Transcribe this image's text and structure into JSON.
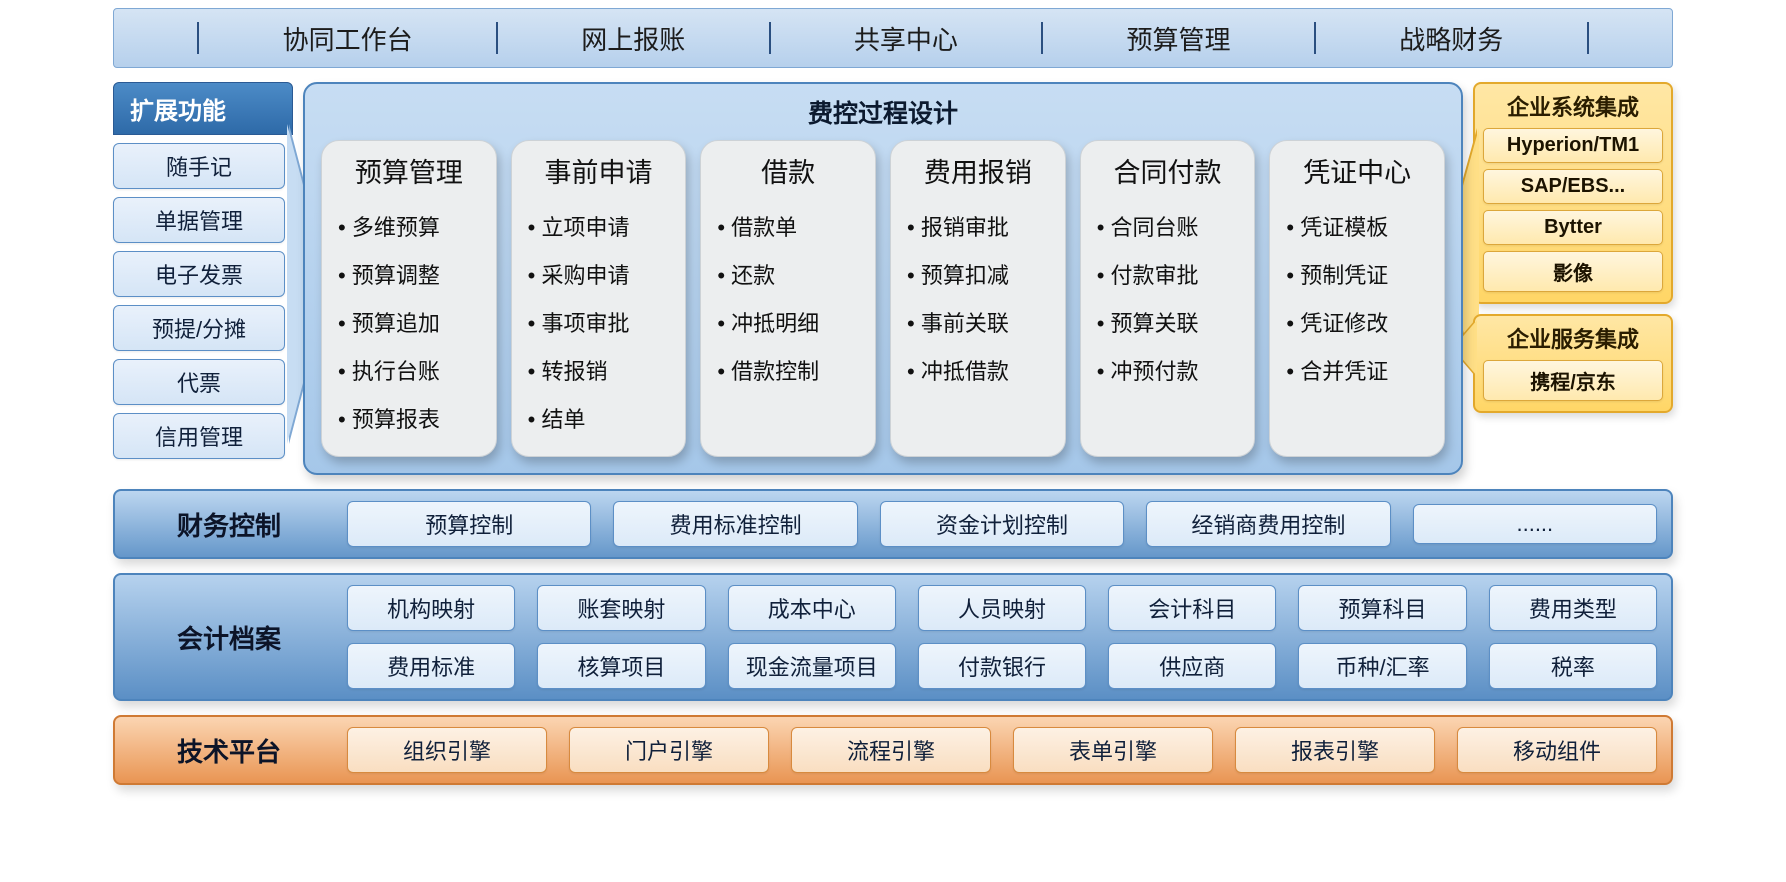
{
  "colors": {
    "top_nav_bg_from": "#d5e4f4",
    "top_nav_bg_to": "#b6d0ec",
    "top_nav_border": "#7fa8d4",
    "top_nav_sep": "#2a4f80",
    "blue_band_from": "#bcd6f0",
    "blue_band_to": "#6597ca",
    "blue_band_border": "#4d84bc",
    "orange_band_from": "#fbd5b2",
    "orange_band_to": "#e99553",
    "orange_band_border": "#cf7a34",
    "card_bg": "#eceeef",
    "card_border": "#cdd2d6",
    "pill_blue_from": "#e9f1fb",
    "pill_blue_to": "#d5e5f6",
    "pill_blue_border": "#5c8fc6",
    "yellow_from": "#ffe7a5",
    "yellow_to": "#ffd666",
    "yellow_border": "#e3a92c",
    "pill_yellow_from": "#fff6de",
    "pill_yellow_to": "#ffe9ae",
    "pill_yellow_border": "#dca73b",
    "text_dark": "#10203a"
  },
  "topnav": [
    "协同工作台",
    "网上报账",
    "共享中心",
    "预算管理",
    "战略财务"
  ],
  "left_ext": {
    "title": "扩展功能",
    "items": [
      "随手记",
      "单据管理",
      "电子发票",
      "预提/分摊",
      "代票",
      "信用管理"
    ]
  },
  "center": {
    "title": "费控过程设计",
    "cards": [
      {
        "title": "预算管理",
        "items": [
          "多维预算",
          "预算调整",
          "预算追加",
          "执行台账",
          "预算报表"
        ]
      },
      {
        "title": "事前申请",
        "items": [
          "立项申请",
          "采购申请",
          "事项审批",
          "转报销",
          "结单"
        ]
      },
      {
        "title": "借款",
        "items": [
          "借款单",
          "还款",
          "冲抵明细",
          "借款控制"
        ]
      },
      {
        "title": "费用报销",
        "items": [
          "报销审批",
          "预算扣减",
          "事前关联",
          "冲抵借款"
        ]
      },
      {
        "title": "合同付款",
        "items": [
          "合同台账",
          "付款审批",
          "预算关联",
          "冲预付款"
        ]
      },
      {
        "title": "凭证中心",
        "items": [
          "凭证模板",
          "预制凭证",
          "凭证修改",
          "合并凭证"
        ]
      }
    ]
  },
  "right": {
    "sys": {
      "title": "企业系统集成",
      "items": [
        "Hyperion/TM1",
        "SAP/EBS...",
        "Bytter",
        "影像"
      ]
    },
    "svc": {
      "title": "企业服务集成",
      "items": [
        "携程/京东"
      ]
    }
  },
  "rows": {
    "control": {
      "label": "财务控制",
      "items": [
        "预算控制",
        "费用标准控制",
        "资金计划控制",
        "经销商费用控制",
        "......"
      ]
    },
    "archive": {
      "label": "会计档案",
      "items": [
        "机构映射",
        "账套映射",
        "成本中心",
        "人员映射",
        "会计科目",
        "预算科目",
        "费用类型",
        "费用标准",
        "核算项目",
        "现金流量项目",
        "付款银行",
        "供应商",
        "币种/汇率",
        "税率"
      ]
    },
    "tech": {
      "label": "技术平台",
      "items": [
        "组织引擎",
        "门户引擎",
        "流程引擎",
        "表单引擎",
        "报表引擎",
        "移动组件"
      ]
    }
  },
  "fonts": {
    "nav": 26,
    "section_title": 24,
    "card_title": 27,
    "card_item": 22,
    "pill": 22
  }
}
